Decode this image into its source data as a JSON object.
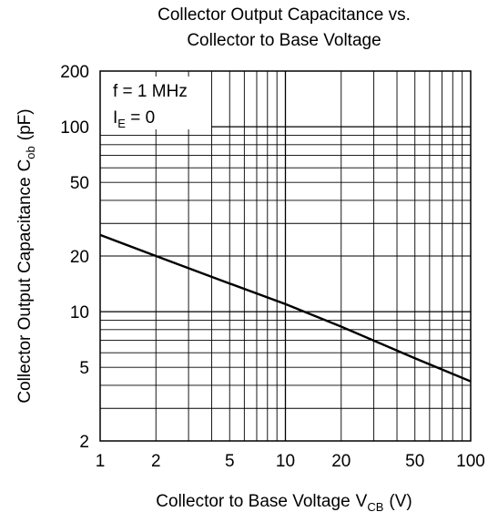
{
  "chart_data": {
    "type": "line",
    "title_lines": [
      "Collector Output Capacitance vs.",
      "Collector to Base Voltage"
    ],
    "xlabel": {
      "text": "Collector to Base Voltage",
      "symbol": "V",
      "subscript": "CB",
      "unit": "(V)"
    },
    "ylabel": {
      "text": "Collector Output Capacitance",
      "symbol": "C",
      "subscript": "ob",
      "unit": "(pF)"
    },
    "x_scale": "log",
    "y_scale": "log",
    "xlim": [
      1,
      100
    ],
    "ylim": [
      2,
      200
    ],
    "x_ticks": [
      1,
      2,
      5,
      10,
      20,
      50,
      100
    ],
    "y_ticks": [
      2,
      5,
      10,
      20,
      50,
      100,
      200
    ],
    "grid": true,
    "annotations": [
      {
        "text": "f = 1 MHz"
      },
      {
        "symbol": "I",
        "subscript": "E",
        "text": " = 0"
      }
    ],
    "series": [
      {
        "x": [
          1,
          2,
          5,
          10,
          20,
          50,
          100
        ],
        "y": [
          26,
          20,
          14.2,
          11,
          8.3,
          5.6,
          4.2
        ]
      }
    ]
  }
}
